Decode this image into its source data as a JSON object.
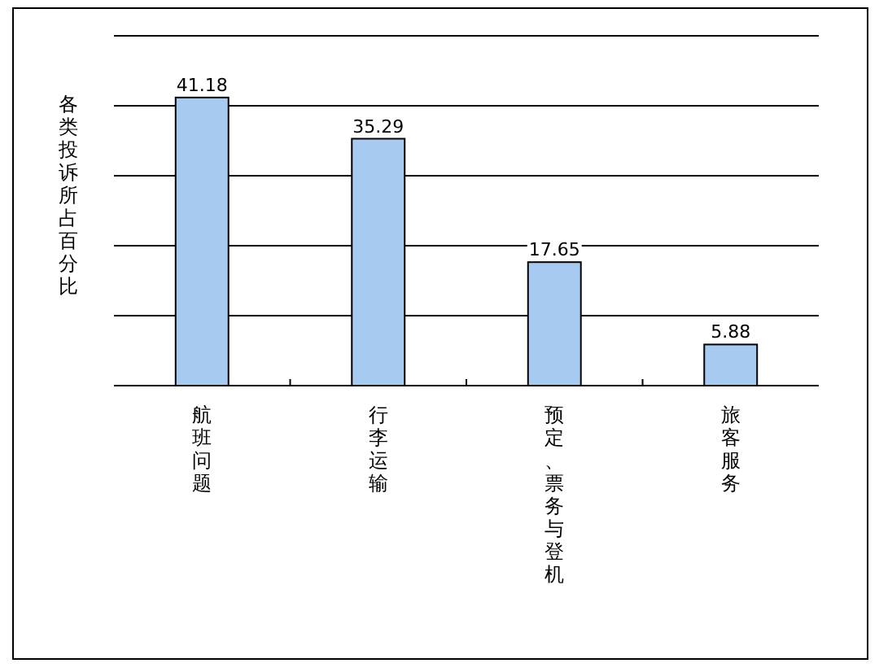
{
  "chart_data": {
    "type": "bar",
    "ylabel": "各类投诉所占百分比",
    "categories": [
      "航班问题",
      "行李运输",
      "预定、票务与登机",
      "旅客服务"
    ],
    "values": [
      41.18,
      35.29,
      17.65,
      5.88
    ],
    "color": "#a6caf0",
    "ylim": [
      0,
      50
    ],
    "yticks": [
      {
        "value": 0,
        "label": null
      },
      {
        "value": 10,
        "label": null
      },
      {
        "value": 20,
        "label": null
      },
      {
        "value": 30,
        "label": null
      },
      {
        "value": 40,
        "label": null
      },
      {
        "value": 50,
        "label": null
      }
    ],
    "tick_labels": "x",
    "grid": "y",
    "data_labels": true
  }
}
